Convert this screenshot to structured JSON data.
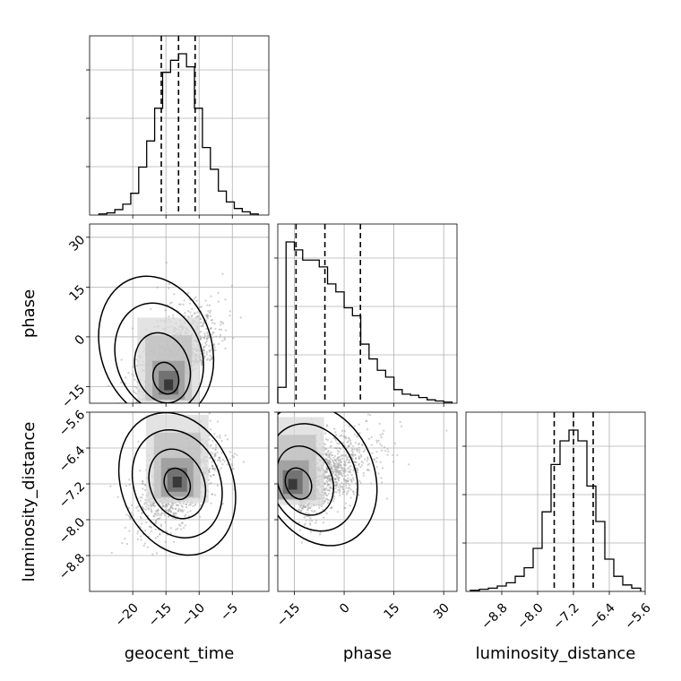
{
  "chart_data": {
    "type": "corner",
    "parameters": [
      "geocent_time",
      "phase",
      "luminosity_distance"
    ],
    "axes": {
      "geocent_time": {
        "range": [
          -26.5,
          0.5
        ],
        "ticks": [
          -20,
          -15,
          -10,
          -5
        ],
        "tick_labels": [
          "−20",
          "−15",
          "−10",
          "−5"
        ]
      },
      "phase": {
        "range": [
          -20,
          34
        ],
        "ticks": [
          -15,
          0,
          15,
          30
        ],
        "tick_labels": [
          "−15",
          "0",
          "15",
          "30"
        ]
      },
      "luminosity_distance": {
        "range": [
          -9.6,
          -5.6
        ],
        "ticks": [
          -8.8,
          -8.0,
          -7.2,
          -6.4,
          -5.6
        ],
        "tick_labels": [
          "−8.8",
          "−8.0",
          "−7.2",
          "−6.4",
          "−5.6"
        ]
      }
    },
    "grid": true,
    "marginals": [
      {
        "parameter": "geocent_time",
        "bin_edges": [
          -25.1,
          -23.9,
          -22.7,
          -21.5,
          -20.3,
          -19.1,
          -17.9,
          -16.7,
          -15.5,
          -14.3,
          -13.1,
          -11.9,
          -10.7,
          -9.5,
          -8.3,
          -7.1,
          -5.9,
          -4.7,
          -3.5,
          -2.3,
          -1.1
        ],
        "counts": [
          1,
          2,
          5,
          10,
          20,
          44,
          68,
          98,
          131,
          142,
          148,
          136,
          98,
          62,
          42,
          22,
          12,
          6,
          3,
          1
        ],
        "quantiles": [
          -15.7,
          -13.1,
          -10.6
        ]
      },
      {
        "parameter": "phase",
        "bin_edges": [
          -20,
          -17.5,
          -15,
          -12.5,
          -10,
          -7.5,
          -5,
          -2.5,
          0,
          2.5,
          5,
          7.5,
          10,
          12.5,
          15,
          17.5,
          20,
          22.5,
          25,
          27.5,
          30,
          32.5
        ],
        "counts": [
          14,
          142,
          135,
          126,
          126,
          120,
          105,
          98,
          84,
          77,
          52,
          39,
          29,
          23,
          12,
          8,
          7,
          5,
          3,
          2,
          1
        ],
        "quantiles": [
          -14.5,
          -5.8,
          4.9
        ]
      },
      {
        "parameter": "luminosity_distance",
        "bin_edges": [
          -9.5,
          -9.3,
          -9.1,
          -8.9,
          -8.7,
          -8.5,
          -8.3,
          -8.1,
          -7.9,
          -7.7,
          -7.5,
          -7.3,
          -7.1,
          -6.9,
          -6.7,
          -6.5,
          -6.3,
          -6.1,
          -5.9,
          -5.7
        ],
        "counts": [
          1,
          2,
          3,
          5,
          8,
          14,
          22,
          40,
          74,
          118,
          140,
          150,
          140,
          98,
          65,
          30,
          14,
          6,
          3
        ],
        "quantiles": [
          -7.63,
          -7.2,
          -6.76
        ]
      }
    ],
    "joint": [
      {
        "x": "geocent_time",
        "y": "phase",
        "peak": [
          -14.6,
          -15
        ],
        "mean": [
          -13.2,
          -6.5
        ],
        "sd": [
          3.0,
          8.0
        ],
        "corr": 0.45,
        "skew_y": true
      },
      {
        "x": "geocent_time",
        "y": "luminosity_distance",
        "peak": [
          -13.3,
          -7.2
        ],
        "mean": [
          -13.2,
          -7.2
        ],
        "sd": [
          3.0,
          0.5
        ],
        "corr": 0.55,
        "skew_y": false
      },
      {
        "x": "phase",
        "y": "luminosity_distance",
        "peak": [
          -15.5,
          -7.25
        ],
        "mean": [
          -6.5,
          -7.05
        ],
        "sd": [
          8.0,
          0.5
        ],
        "corr": 0.6,
        "skew_x": true
      }
    ],
    "labels": {
      "x": [
        "geocent_time",
        "phase",
        "luminosity_distance"
      ],
      "y": [
        "phase",
        "luminosity_distance"
      ]
    }
  }
}
